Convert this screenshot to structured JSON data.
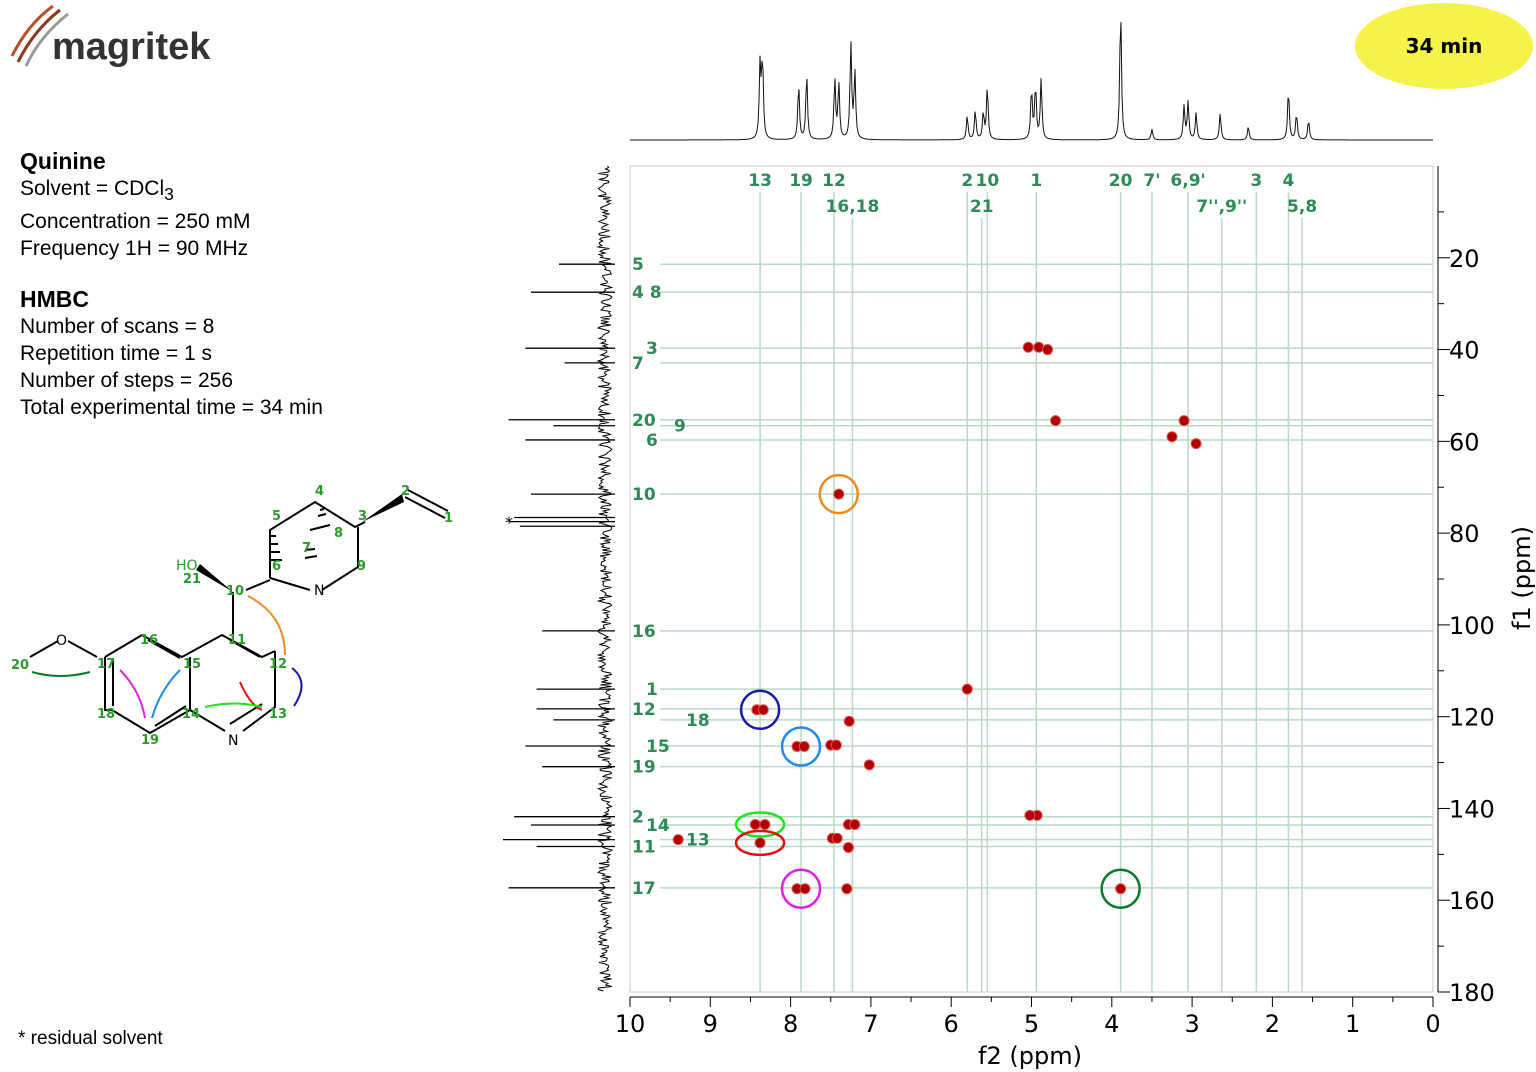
{
  "logo": {
    "text": "magritek"
  },
  "badge": {
    "time": "34 min"
  },
  "sample": {
    "title": "Quinine",
    "solvent_prefix": "Solvent = CDCl",
    "solvent_sub": "3",
    "concentration": "Concentration = 250 mM",
    "frequency": "Frequency 1H = 90 MHz"
  },
  "experiment": {
    "title": "HMBC",
    "scans": "Number of scans = 8",
    "repetition": "Repetition time = 1 s",
    "steps": "Number of steps = 256",
    "total": "Total experimental time =  34 min"
  },
  "footnote": "* residual solvent",
  "colors": {
    "label": "#2e8b57",
    "peak": "#b00000",
    "gridline": "#b9d8c6"
  },
  "chart_data": {
    "type": "heatmap",
    "subtype": "2D HMBC NMR contour plot",
    "xlabel": "f2 (ppm)",
    "ylabel": "f1 (ppm)",
    "xlim": [
      10,
      0
    ],
    "ylim": [
      0,
      180
    ],
    "xticks": [
      10,
      9,
      8,
      7,
      6,
      5,
      4,
      3,
      2,
      1,
      0
    ],
    "yticks": [
      20,
      40,
      60,
      80,
      100,
      120,
      140,
      160,
      180
    ],
    "f2_labels": [
      {
        "text": "13",
        "ppm": 8.38,
        "row": 1
      },
      {
        "text": "19",
        "ppm": 7.87,
        "row": 1
      },
      {
        "text": "12",
        "ppm": 7.46,
        "row": 1
      },
      {
        "text": "16,18",
        "ppm": 7.23,
        "row": 2
      },
      {
        "text": "2",
        "ppm": 5.8,
        "row": 1
      },
      {
        "text": "10",
        "ppm": 5.55,
        "row": 1
      },
      {
        "text": "21",
        "ppm": 5.62,
        "row": 2
      },
      {
        "text": "1",
        "ppm": 4.94,
        "row": 1
      },
      {
        "text": "20",
        "ppm": 3.89,
        "row": 1
      },
      {
        "text": "7'",
        "ppm": 3.5,
        "row": 1
      },
      {
        "text": "6,9'",
        "ppm": 3.05,
        "row": 1
      },
      {
        "text": "7'',9''",
        "ppm": 2.63,
        "row": 2
      },
      {
        "text": "3",
        "ppm": 2.2,
        "row": 1
      },
      {
        "text": "4",
        "ppm": 1.8,
        "row": 1
      },
      {
        "text": "5,8",
        "ppm": 1.63,
        "row": 2
      }
    ],
    "f1_labels": [
      {
        "text": "5",
        "ppm": 21.4,
        "col": 0
      },
      {
        "text": "4 8",
        "ppm": 27.5,
        "col": 0
      },
      {
        "text": "3",
        "ppm": 39.7,
        "col": 1
      },
      {
        "text": "7",
        "ppm": 42.9,
        "col": 0
      },
      {
        "text": "20",
        "ppm": 55.3,
        "col": 0
      },
      {
        "text": "9",
        "ppm": 56.6,
        "col": 2
      },
      {
        "text": "6",
        "ppm": 59.7,
        "col": 1
      },
      {
        "text": "10",
        "ppm": 71.5,
        "col": 0
      },
      {
        "text": "16",
        "ppm": 101.3,
        "col": 0
      },
      {
        "text": "1",
        "ppm": 114.0,
        "col": 1
      },
      {
        "text": "12",
        "ppm": 118.3,
        "col": 0
      },
      {
        "text": "18",
        "ppm": 120.7,
        "col": 3
      },
      {
        "text": "15",
        "ppm": 126.4,
        "col": 1
      },
      {
        "text": "19",
        "ppm": 130.9,
        "col": 0
      },
      {
        "text": "2",
        "ppm": 141.8,
        "col": 0
      },
      {
        "text": "14",
        "ppm": 143.6,
        "col": 1
      },
      {
        "text": "13",
        "ppm": 146.8,
        "col": 3
      },
      {
        "text": "11",
        "ppm": 148.3,
        "col": 0
      },
      {
        "text": "17",
        "ppm": 157.3,
        "col": 0
      }
    ],
    "cross_peaks": [
      [
        7.4,
        71.5
      ],
      [
        8.42,
        118.5
      ],
      [
        8.34,
        118.5
      ],
      [
        7.92,
        126.5
      ],
      [
        7.83,
        126.5
      ],
      [
        7.5,
        126.2
      ],
      [
        7.43,
        126.2
      ],
      [
        8.44,
        143.5
      ],
      [
        8.32,
        143.5
      ],
      [
        8.38,
        147.5
      ],
      [
        7.92,
        157.5
      ],
      [
        7.82,
        157.5
      ],
      [
        3.89,
        157.5
      ],
      [
        5.04,
        39.5
      ],
      [
        4.91,
        39.5
      ],
      [
        4.8,
        40.0
      ],
      [
        4.7,
        55.5
      ],
      [
        3.1,
        55.5
      ],
      [
        3.25,
        59.0
      ],
      [
        2.95,
        60.5
      ],
      [
        5.8,
        114.0
      ],
      [
        7.27,
        121.0
      ],
      [
        7.02,
        130.5
      ],
      [
        4.93,
        141.5
      ],
      [
        5.02,
        141.5
      ],
      [
        7.28,
        143.5
      ],
      [
        7.2,
        143.5
      ],
      [
        7.48,
        146.5
      ],
      [
        7.42,
        146.5
      ],
      [
        7.28,
        148.5
      ],
      [
        7.3,
        157.5
      ],
      [
        9.4,
        146.8
      ]
    ],
    "circled_peaks": [
      {
        "ppm": [
          7.4,
          71.5
        ],
        "color": "#f08a1c"
      },
      {
        "ppm": [
          8.38,
          118.5
        ],
        "color": "#1a1aa8"
      },
      {
        "ppm": [
          7.87,
          126.5
        ],
        "color": "#1f8ce8"
      },
      {
        "ppm": [
          8.38,
          143.5
        ],
        "color": "#22e022"
      },
      {
        "ppm": [
          8.38,
          147.5
        ],
        "color": "#e01010"
      },
      {
        "ppm": [
          7.87,
          157.5
        ],
        "color": "#e020e0"
      },
      {
        "ppm": [
          3.89,
          157.5
        ],
        "color": "#0c7a2a"
      }
    ],
    "f2_projection_peaks": [
      [
        8.38,
        0.55
      ],
      [
        8.35,
        0.6
      ],
      [
        7.9,
        0.42
      ],
      [
        7.8,
        0.5
      ],
      [
        7.45,
        0.45
      ],
      [
        7.4,
        0.42
      ],
      [
        7.25,
        0.72
      ],
      [
        7.2,
        0.5
      ],
      [
        5.8,
        0.18
      ],
      [
        5.7,
        0.22
      ],
      [
        5.6,
        0.2
      ],
      [
        5.55,
        0.4
      ],
      [
        5.0,
        0.38
      ],
      [
        4.95,
        0.4
      ],
      [
        4.88,
        0.45
      ],
      [
        3.89,
        1.0
      ],
      [
        3.5,
        0.08
      ],
      [
        3.1,
        0.25
      ],
      [
        3.05,
        0.28
      ],
      [
        2.95,
        0.2
      ],
      [
        2.65,
        0.2
      ],
      [
        2.3,
        0.1
      ],
      [
        1.8,
        0.38
      ],
      [
        1.7,
        0.2
      ],
      [
        1.55,
        0.15
      ]
    ],
    "f1_projection_peaks": [
      [
        21.4,
        0.5
      ],
      [
        27.5,
        0.75
      ],
      [
        39.7,
        0.8
      ],
      [
        42.9,
        0.45
      ],
      [
        55.3,
        0.95
      ],
      [
        56.6,
        0.55
      ],
      [
        59.7,
        0.8
      ],
      [
        71.5,
        0.75
      ],
      [
        76.6,
        0.9
      ],
      [
        77.5,
        0.95
      ],
      [
        78.5,
        0.85
      ],
      [
        101.3,
        0.65
      ],
      [
        114.0,
        0.7
      ],
      [
        118.3,
        0.7
      ],
      [
        120.7,
        0.55
      ],
      [
        126.4,
        0.8
      ],
      [
        130.9,
        0.65
      ],
      [
        141.8,
        0.9
      ],
      [
        143.6,
        0.75
      ],
      [
        146.8,
        1.0
      ],
      [
        148.3,
        0.7
      ],
      [
        157.3,
        0.95
      ]
    ],
    "annotation": "*"
  },
  "structure": {
    "atoms": [
      "1",
      "2",
      "3",
      "4",
      "5",
      "6",
      "7",
      "8",
      "9",
      "10",
      "11",
      "12",
      "13",
      "14",
      "15",
      "16",
      "17",
      "18",
      "19",
      "20",
      "21"
    ],
    "hetero": [
      "HO",
      "O",
      "N",
      "N"
    ]
  }
}
